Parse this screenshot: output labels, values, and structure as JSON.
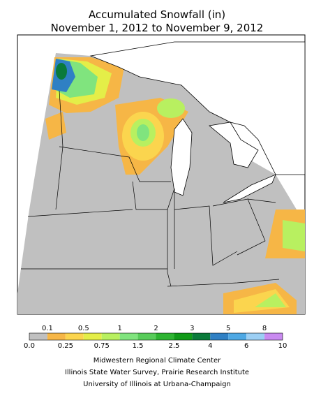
{
  "title": [
    "Accumulated Snowfall (in)",
    "November 1, 2012 to November 9, 2012"
  ],
  "legend": {
    "boundaries": [
      {
        "value": 0,
        "label": "0.0"
      },
      0.1,
      0.25,
      0.5,
      0.75,
      1,
      1.5,
      2,
      2.5,
      3,
      4,
      5,
      6,
      8,
      10
    ],
    "colors": [
      "#c0c0c0",
      "#f6b646",
      "#fbd54e",
      "#e4ee48",
      "#b8f060",
      "#80e47e",
      "#58cc5a",
      "#2eb432",
      "#109a18",
      "#0a7a3a",
      "#2f80c4",
      "#4ea8e4",
      "#9ccff4",
      "#c98af0"
    ]
  },
  "credits": [
    "Midwestern Regional Climate Center",
    "Illinois State Water Survey, Prairie Research Institute",
    "University of Illinois at Urbana-Champaign"
  ]
}
